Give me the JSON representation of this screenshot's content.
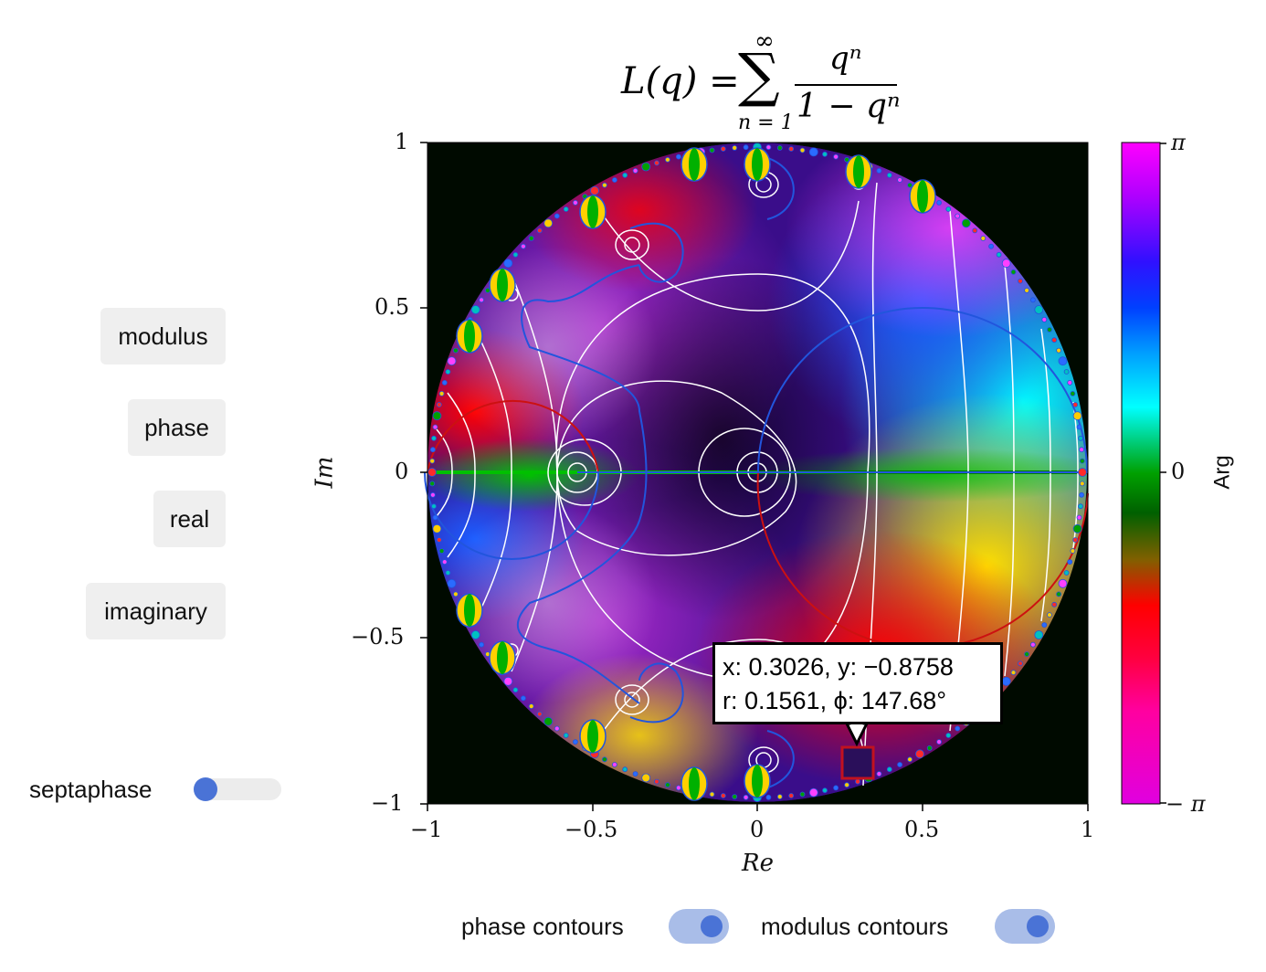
{
  "title": {
    "lhs": "L(q) =",
    "sum_upper": "∞",
    "sum_lower": "n = 1",
    "numerator": "qⁿ",
    "denominator": "1 − qⁿ"
  },
  "buttons": {
    "modulus": "modulus",
    "phase": "phase",
    "real": "real",
    "imaginary": "imaginary"
  },
  "septaphase": {
    "label": "septaphase",
    "value": 0
  },
  "toggles": {
    "phase_contours": {
      "label": "phase contours",
      "on": true
    },
    "modulus_contours": {
      "label": "modulus contours",
      "on": true
    }
  },
  "axes": {
    "xlabel": "Re",
    "ylabel": "Im",
    "xticks": [
      "−1",
      "−0.5",
      "0",
      "0.5",
      "1"
    ],
    "yticks": [
      "1",
      "0.5",
      "0",
      "−0.5",
      "−1"
    ]
  },
  "colorbar": {
    "label": "Arg",
    "ticks": [
      "π",
      "0",
      "− π"
    ]
  },
  "tooltip": {
    "line1": "x: 0.3026, y: −0.8758",
    "line2": "r: 0.1561, ϕ: 147.68°",
    "marker_color": "#2a0f5a"
  },
  "colors": {
    "accent": "#4a73d6",
    "plot_background": "#000a00"
  }
}
